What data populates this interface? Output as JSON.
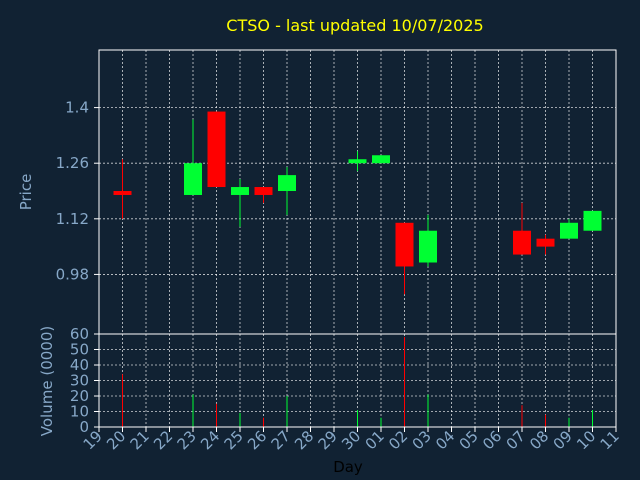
{
  "chart_data": [
    {
      "type": "candlestick",
      "title": "CTSO - last updated 10/07/2025",
      "ylabel": "Price",
      "ylim": [
        0.83,
        1.545
      ],
      "yticks": [
        0.98,
        1.12,
        1.26,
        1.4
      ],
      "ytick_labels": [
        "0.98",
        "1.12",
        "1.26",
        "1.4"
      ],
      "grid": true,
      "colors": {
        "up": "#00ff33",
        "down": "#ff0000"
      },
      "candles": [
        {
          "day": "20",
          "open": 1.19,
          "high": 1.27,
          "low": 1.12,
          "close": 1.18
        },
        {
          "day": "23",
          "open": 1.18,
          "high": 1.37,
          "low": 1.18,
          "close": 1.26
        },
        {
          "day": "24",
          "open": 1.39,
          "high": 1.39,
          "low": 1.2,
          "close": 1.2
        },
        {
          "day": "25",
          "open": 1.18,
          "high": 1.22,
          "low": 1.1,
          "close": 1.2
        },
        {
          "day": "26",
          "open": 1.2,
          "high": 1.2,
          "low": 1.16,
          "close": 1.18
        },
        {
          "day": "27",
          "open": 1.19,
          "high": 1.25,
          "low": 1.13,
          "close": 1.23
        },
        {
          "day": "30",
          "open": 1.26,
          "high": 1.29,
          "low": 1.24,
          "close": 1.27
        },
        {
          "day": "01",
          "open": 1.26,
          "high": 1.28,
          "low": 1.26,
          "close": 1.28
        },
        {
          "day": "02",
          "open": 1.11,
          "high": 1.11,
          "low": 0.93,
          "close": 1.0
        },
        {
          "day": "03",
          "open": 1.01,
          "high": 1.13,
          "low": 1.0,
          "close": 1.09
        },
        {
          "day": "07",
          "open": 1.09,
          "high": 1.16,
          "low": 1.03,
          "close": 1.03
        },
        {
          "day": "08",
          "open": 1.07,
          "high": 1.08,
          "low": 1.03,
          "close": 1.05
        },
        {
          "day": "09",
          "open": 1.07,
          "high": 1.12,
          "low": 1.07,
          "close": 1.11
        },
        {
          "day": "10",
          "open": 1.09,
          "high": 1.14,
          "low": 1.09,
          "close": 1.14
        }
      ]
    },
    {
      "type": "bar",
      "xlabel": "Day",
      "ylabel": "Volume (0000)",
      "ylim": [
        0,
        60
      ],
      "yticks": [
        0,
        10,
        20,
        30,
        40,
        50,
        60
      ],
      "ytick_labels": [
        "0",
        "10",
        "20",
        "30",
        "40",
        "50",
        "60"
      ],
      "grid": true,
      "categories": [
        "19",
        "20",
        "21",
        "22",
        "23",
        "24",
        "25",
        "26",
        "27",
        "28",
        "29",
        "30",
        "01",
        "02",
        "03",
        "04",
        "05",
        "06",
        "07",
        "08",
        "09",
        "10",
        "11"
      ],
      "values": [
        0,
        34,
        0,
        0,
        21,
        15,
        9,
        6,
        20,
        0,
        0,
        11,
        6,
        58,
        21,
        0,
        0,
        0,
        14,
        8,
        6,
        11,
        0
      ],
      "bar_colors": [
        "#ff0000",
        "#ff0000",
        "#ff0000",
        "#ff0000",
        "#00ff33",
        "#ff0000",
        "#00ff33",
        "#ff0000",
        "#00ff33",
        "#ff0000",
        "#ff0000",
        "#00ff33",
        "#00ff33",
        "#ff0000",
        "#00ff33",
        "#ff0000",
        "#ff0000",
        "#ff0000",
        "#ff0000",
        "#ff0000",
        "#00ff33",
        "#00ff33",
        "#ff0000"
      ]
    }
  ]
}
